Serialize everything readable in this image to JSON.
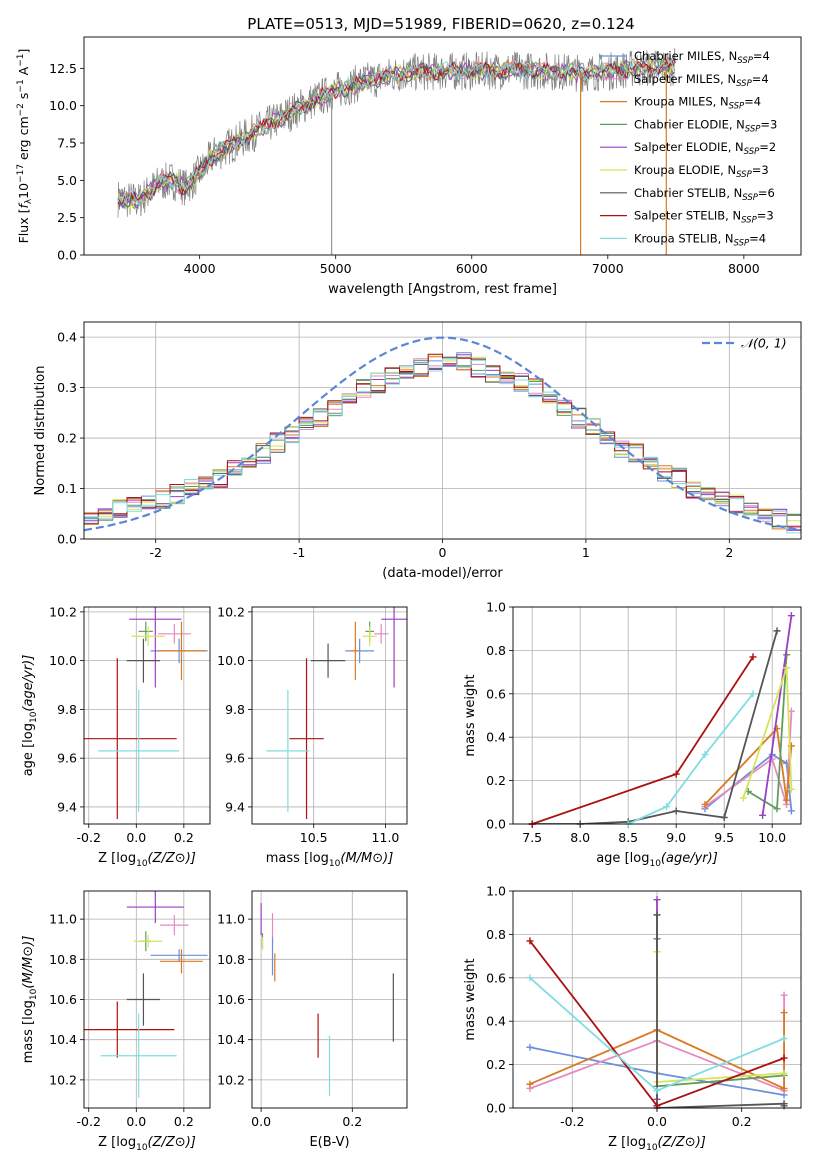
{
  "figure": {
    "title": "PLATE=0513, MJD=51989, FIBERID=0620, z=0.124"
  },
  "colors": {
    "Chabrier MILES": "#6b8fdc",
    "Salpeter MILES": "#e58ac0",
    "Kroupa MILES": "#d97a22",
    "Chabrier ELODIE": "#5e9e5e",
    "Salpeter ELODIE": "#9a3fc0",
    "Kroupa ELODIE": "#d7e35a",
    "Chabrier STELIB": "#555555",
    "Salpeter STELIB": "#aa1111",
    "Kroupa STELIB": "#80dde0",
    "normal": "#5b86d6",
    "data": "#808080"
  },
  "chart_data": [
    {
      "id": "spectrum",
      "type": "line",
      "xlabel": "wavelength [Angstrom, rest frame]",
      "ylabel": "Flux [f_λ10^-17 erg cm^-2 s^-1 A^-1]",
      "xlim": [
        3150,
        8420
      ],
      "ylim": [
        0,
        14.6
      ],
      "xticks": [
        4000,
        5000,
        6000,
        7000,
        8000
      ],
      "yticks": [
        0.0,
        2.5,
        5.0,
        7.5,
        10.0,
        12.5
      ],
      "grid": false,
      "legend_position": "top-right",
      "legend": [
        {
          "model": "Chabrier MILES",
          "nssp": 4
        },
        {
          "model": "Salpeter MILES",
          "nssp": 4
        },
        {
          "model": "Kroupa MILES",
          "nssp": 4
        },
        {
          "model": "Chabrier ELODIE",
          "nssp": 3
        },
        {
          "model": "Salpeter ELODIE",
          "nssp": 2
        },
        {
          "model": "Kroupa ELODIE",
          "nssp": 3
        },
        {
          "model": "Chabrier STELIB",
          "nssp": 6
        },
        {
          "model": "Salpeter STELIB",
          "nssp": 3
        },
        {
          "model": "Kroupa STELIB",
          "nssp": 4
        }
      ],
      "legend_label_template": "N_SSP",
      "continuum_knots": {
        "wavelength": [
          3400,
          3550,
          3700,
          3800,
          3900,
          4000,
          4100,
          4300,
          4500,
          4800,
          5000,
          5200,
          5500,
          5800,
          6000,
          6300,
          6600,
          6800,
          7000,
          7200,
          7500
        ],
        "flux": [
          3.8,
          3.6,
          4.8,
          5.0,
          4.5,
          5.5,
          6.7,
          7.7,
          8.7,
          10.2,
          11.0,
          11.6,
          12.2,
          12.3,
          12.3,
          12.4,
          12.3,
          12.2,
          12.3,
          12.5,
          12.6
        ]
      }
    },
    {
      "id": "residuals",
      "type": "line",
      "xlabel": "(data-model)/error",
      "ylabel": "Normed distribution",
      "xlim": [
        -2.5,
        2.5
      ],
      "ylim": [
        0,
        0.43
      ],
      "xticks": [
        -2,
        -1,
        0,
        1,
        2
      ],
      "yticks": [
        0.0,
        0.1,
        0.2,
        0.3,
        0.4
      ],
      "grid": true,
      "legend_position": "top-right",
      "legend": [
        "𝒩(0, 1)"
      ],
      "bin_width": 0.1,
      "histogram_bins_from": -2.5,
      "histogram_values": [
        0.04,
        0.05,
        0.06,
        0.07,
        0.07,
        0.08,
        0.09,
        0.1,
        0.11,
        0.12,
        0.14,
        0.15,
        0.17,
        0.19,
        0.21,
        0.23,
        0.24,
        0.26,
        0.28,
        0.3,
        0.31,
        0.32,
        0.33,
        0.34,
        0.35,
        0.35,
        0.35,
        0.34,
        0.33,
        0.32,
        0.31,
        0.3,
        0.28,
        0.26,
        0.24,
        0.22,
        0.2,
        0.18,
        0.17,
        0.15,
        0.13,
        0.12,
        0.1,
        0.09,
        0.08,
        0.07,
        0.06,
        0.05,
        0.04,
        0.03
      ],
      "histogram_offsets": [
        0.0,
        -0.01,
        0.012,
        0.006,
        -0.015,
        0.018,
        -0.004,
        0.009,
        -0.012,
        0.015,
        0.003,
        -0.008,
        0.02,
        -0.018,
        0.011,
        -0.006,
        0.014,
        -0.01,
        0.007,
        -0.016,
        0.019,
        0.002,
        -0.013,
        0.016,
        -0.003,
        0.008,
        -0.019,
        0.013,
        0.004,
        -0.009,
        0.017,
        -0.007,
        0.01,
        -0.014,
        0.006,
        0.012,
        -0.005,
        0.018,
        -0.011,
        0.003,
        0.015,
        -0.017,
        0.009,
        -0.002,
        0.014,
        -0.012,
        0.007,
        0.01,
        -0.006,
        0.011
      ]
    },
    {
      "id": "age_vs_Z",
      "type": "scatter",
      "xlabel": "Z [log10(Z/Z⊙)]",
      "ylabel": "age  [log10(age/yr)]",
      "xlim": [
        -0.22,
        0.31
      ],
      "ylim": [
        9.33,
        10.22
      ],
      "xticks": [
        -0.2,
        0.0,
        0.2
      ],
      "yticks": [
        9.4,
        9.6,
        9.8,
        10.0,
        10.2
      ],
      "grid": true,
      "points": [
        {
          "model": "Chabrier MILES",
          "x": 0.18,
          "y": 10.04,
          "xerr": 0.12,
          "yerr": 0.05
        },
        {
          "model": "Salpeter MILES",
          "x": 0.16,
          "y": 10.11,
          "xerr": 0.07,
          "yerr": 0.04
        },
        {
          "model": "Kroupa MILES",
          "x": 0.19,
          "y": 10.04,
          "xerr": 0.1,
          "yerr": 0.12
        },
        {
          "model": "Chabrier ELODIE",
          "x": 0.04,
          "y": 10.12,
          "xerr": 0.03,
          "yerr": 0.04
        },
        {
          "model": "Salpeter ELODIE",
          "x": 0.08,
          "y": 10.17,
          "xerr": 0.11,
          "yerr": 0.28
        },
        {
          "model": "Kroupa ELODIE",
          "x": 0.05,
          "y": 10.1,
          "xerr": 0.07,
          "yerr": 0.04
        },
        {
          "model": "Chabrier STELIB",
          "x": 0.03,
          "y": 10.0,
          "xerr": 0.07,
          "yerr": 0.09
        },
        {
          "model": "Salpeter STELIB",
          "x": -0.08,
          "y": 9.68,
          "xerr": 0.25,
          "yerr": 0.33
        },
        {
          "model": "Kroupa STELIB",
          "x": 0.01,
          "y": 9.63,
          "xerr": 0.17,
          "yerr": 0.25
        }
      ]
    },
    {
      "id": "age_vs_mass",
      "type": "scatter",
      "xlabel": "mass [log10(M/M⊙)]",
      "ylabel": "",
      "xlim": [
        10.07,
        11.15
      ],
      "ylim": [
        9.33,
        10.22
      ],
      "xticks": [
        10.5,
        11.0
      ],
      "yticks": [
        9.4,
        9.6,
        9.8,
        10.0,
        10.2
      ],
      "grid": true,
      "points": [
        {
          "model": "Chabrier MILES",
          "x": 10.82,
          "y": 10.04,
          "xerr": 0.1,
          "yerr": 0.05
        },
        {
          "model": "Salpeter MILES",
          "x": 10.97,
          "y": 10.11,
          "xerr": 0.05,
          "yerr": 0.04
        },
        {
          "model": "Kroupa MILES",
          "x": 10.79,
          "y": 10.04,
          "xerr": 0.03,
          "yerr": 0.12
        },
        {
          "model": "Chabrier ELODIE",
          "x": 10.89,
          "y": 10.12,
          "xerr": 0.03,
          "yerr": 0.04
        },
        {
          "model": "Salpeter ELODIE",
          "x": 11.06,
          "y": 10.17,
          "xerr": 0.09,
          "yerr": 0.28
        },
        {
          "model": "Kroupa ELODIE",
          "x": 10.89,
          "y": 10.1,
          "xerr": 0.05,
          "yerr": 0.04
        },
        {
          "model": "Chabrier STELIB",
          "x": 10.6,
          "y": 10.0,
          "xerr": 0.12,
          "yerr": 0.07
        },
        {
          "model": "Salpeter STELIB",
          "x": 10.45,
          "y": 9.68,
          "xerr": 0.12,
          "yerr": 0.33
        },
        {
          "model": "Kroupa STELIB",
          "x": 10.32,
          "y": 9.63,
          "xerr": 0.15,
          "yerr": 0.25
        }
      ]
    },
    {
      "id": "weight_vs_age",
      "type": "line",
      "xlabel": "age  [log10(age/yr)]",
      "ylabel": "mass weight",
      "xlim": [
        7.3,
        10.3
      ],
      "ylim": [
        0,
        1.0
      ],
      "xticks": [
        7.5,
        8.0,
        8.5,
        9.0,
        9.5,
        10.0
      ],
      "yticks": [
        0.0,
        0.2,
        0.4,
        0.6,
        0.8,
        1.0
      ],
      "grid": true,
      "series": [
        {
          "model": "Chabrier MILES",
          "x": [
            9.3,
            10.0,
            10.15,
            10.2
          ],
          "y": [
            0.07,
            0.32,
            0.28,
            0.06
          ]
        },
        {
          "model": "Salpeter MILES",
          "x": [
            9.3,
            10.0,
            10.15,
            10.2
          ],
          "y": [
            0.08,
            0.3,
            0.09,
            0.52
          ]
        },
        {
          "model": "Kroupa MILES",
          "x": [
            9.3,
            10.05,
            10.15,
            10.2
          ],
          "y": [
            0.09,
            0.44,
            0.11,
            0.36
          ]
        },
        {
          "model": "Chabrier ELODIE",
          "x": [
            9.75,
            10.05,
            10.15
          ],
          "y": [
            0.15,
            0.07,
            0.78
          ]
        },
        {
          "model": "Salpeter ELODIE",
          "x": [
            9.9,
            10.2
          ],
          "y": [
            0.04,
            0.96
          ]
        },
        {
          "model": "Kroupa ELODIE",
          "x": [
            9.7,
            10.15,
            10.2
          ],
          "y": [
            0.12,
            0.72,
            0.16
          ]
        },
        {
          "model": "Chabrier STELIB",
          "x": [
            7.5,
            8.0,
            8.5,
            9.0,
            9.5,
            10.05
          ],
          "y": [
            0.0,
            0.0,
            0.01,
            0.06,
            0.03,
            0.89
          ]
        },
        {
          "model": "Salpeter STELIB",
          "x": [
            7.5,
            9.0,
            9.8
          ],
          "y": [
            0.0,
            0.23,
            0.77
          ]
        },
        {
          "model": "Kroupa STELIB",
          "x": [
            8.5,
            8.9,
            9.3,
            9.8
          ],
          "y": [
            0.0,
            0.08,
            0.32,
            0.6
          ]
        }
      ]
    },
    {
      "id": "mass_vs_Z",
      "type": "scatter",
      "xlabel": "Z [log10(Z/Z⊙)]",
      "ylabel": "mass [log10(M/M⊙)]",
      "xlim": [
        -0.22,
        0.31
      ],
      "ylim": [
        10.06,
        11.14
      ],
      "xticks": [
        -0.2,
        0.0,
        0.2
      ],
      "yticks": [
        10.2,
        10.4,
        10.6,
        10.8,
        11.0
      ],
      "grid": true,
      "points": [
        {
          "model": "Chabrier MILES",
          "x": 0.18,
          "y": 10.82,
          "xerr": 0.12,
          "yerr": 0.03
        },
        {
          "model": "Salpeter MILES",
          "x": 0.16,
          "y": 10.97,
          "xerr": 0.06,
          "yerr": 0.05
        },
        {
          "model": "Kroupa MILES",
          "x": 0.19,
          "y": 10.79,
          "xerr": 0.09,
          "yerr": 0.06
        },
        {
          "model": "Chabrier ELODIE",
          "x": 0.04,
          "y": 10.89,
          "xerr": 0.02,
          "yerr": 0.05
        },
        {
          "model": "Salpeter ELODIE",
          "x": 0.08,
          "y": 11.06,
          "xerr": 0.12,
          "yerr": 0.08
        },
        {
          "model": "Kroupa ELODIE",
          "x": 0.05,
          "y": 10.89,
          "xerr": 0.06,
          "yerr": 0.03
        },
        {
          "model": "Chabrier STELIB",
          "x": 0.03,
          "y": 10.6,
          "xerr": 0.07,
          "yerr": 0.13
        },
        {
          "model": "Salpeter STELIB",
          "x": -0.08,
          "y": 10.45,
          "xerr": 0.24,
          "yerr": 0.14
        },
        {
          "model": "Kroupa STELIB",
          "x": 0.01,
          "y": 10.32,
          "xerr": 0.16,
          "yerr": 0.21
        }
      ]
    },
    {
      "id": "mass_vs_ebv",
      "type": "scatter",
      "xlabel": "E(B-V)",
      "ylabel": "",
      "xlim": [
        -0.02,
        0.32
      ],
      "ylim": [
        10.06,
        11.14
      ],
      "xticks": [
        0.0,
        0.2
      ],
      "yticks": [
        10.2,
        10.4,
        10.6,
        10.8,
        11.0
      ],
      "grid": true,
      "points": [
        {
          "model": "Chabrier MILES",
          "x": 0.025,
          "y": 10.82,
          "xerr": 0,
          "yerr": 0.1
        },
        {
          "model": "Salpeter MILES",
          "x": 0.025,
          "y": 10.97,
          "xerr": 0,
          "yerr": 0.06
        },
        {
          "model": "Kroupa MILES",
          "x": 0.03,
          "y": 10.76,
          "xerr": 0,
          "yerr": 0.07
        },
        {
          "model": "Chabrier ELODIE",
          "x": 0.003,
          "y": 10.89,
          "xerr": 0,
          "yerr": 0.04
        },
        {
          "model": "Salpeter ELODIE",
          "x": 0.0,
          "y": 11.0,
          "xerr": 0,
          "yerr": 0.08
        },
        {
          "model": "Kroupa ELODIE",
          "x": 0.003,
          "y": 10.88,
          "xerr": 0,
          "yerr": 0.03
        },
        {
          "model": "Chabrier STELIB",
          "x": 0.29,
          "y": 10.56,
          "xerr": 0,
          "yerr": 0.17
        },
        {
          "model": "Salpeter STELIB",
          "x": 0.125,
          "y": 10.42,
          "xerr": 0,
          "yerr": 0.11
        },
        {
          "model": "Kroupa STELIB",
          "x": 0.15,
          "y": 10.27,
          "xerr": 0,
          "yerr": 0.15
        }
      ]
    },
    {
      "id": "weight_vs_Z",
      "type": "line",
      "xlabel": "Z [log10(Z/Z⊙)]",
      "ylabel": "mass weight",
      "xlim": [
        -0.34,
        0.34
      ],
      "ylim": [
        0,
        1.0
      ],
      "xticks": [
        -0.2,
        0.0,
        0.2
      ],
      "yticks": [
        0.0,
        0.2,
        0.4,
        0.6,
        0.8,
        1.0
      ],
      "grid": true,
      "series": [
        {
          "model": "Chabrier MILES",
          "x": [
            -0.3,
            0.0,
            0.3
          ],
          "y": [
            0.28,
            0.16,
            0.06
          ]
        },
        {
          "model": "Salpeter MILES",
          "x": [
            -0.3,
            0.0,
            0.3,
            0.3
          ],
          "y": [
            0.09,
            0.31,
            0.08,
            0.52
          ]
        },
        {
          "model": "Kroupa MILES",
          "x": [
            -0.3,
            0.0,
            0.3,
            0.3
          ],
          "y": [
            0.11,
            0.36,
            0.09,
            0.44
          ]
        },
        {
          "model": "Chabrier ELODIE",
          "x": [
            0.0,
            0.0,
            0.3
          ],
          "y": [
            0.78,
            0.1,
            0.15
          ]
        },
        {
          "model": "Salpeter ELODIE",
          "x": [
            0.0,
            0.0
          ],
          "y": [
            0.04,
            0.96
          ]
        },
        {
          "model": "Kroupa ELODIE",
          "x": [
            0.0,
            0.0,
            0.3
          ],
          "y": [
            0.72,
            0.12,
            0.16
          ]
        },
        {
          "model": "Chabrier STELIB",
          "x": [
            0.0,
            0.0,
            0.3,
            0.3
          ],
          "y": [
            0.89,
            0.0,
            0.02,
            0.01
          ]
        },
        {
          "model": "Salpeter STELIB",
          "x": [
            -0.3,
            0.0,
            0.3
          ],
          "y": [
            0.77,
            0.01,
            0.23
          ]
        },
        {
          "model": "Kroupa STELIB",
          "x": [
            -0.3,
            0.0,
            0.3
          ],
          "y": [
            0.6,
            0.08,
            0.32
          ]
        }
      ]
    }
  ]
}
